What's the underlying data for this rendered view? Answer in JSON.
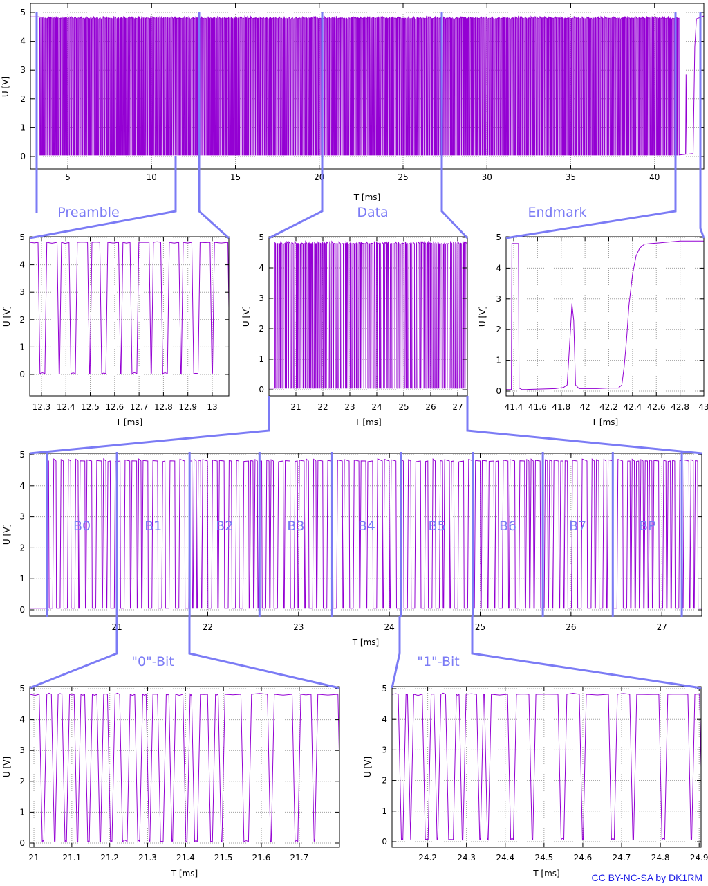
{
  "colors": {
    "signal": "#9400d3",
    "annotation": "#7b7bf5",
    "grid": "#a0a0a0",
    "frame": "#000000",
    "credit": "#1a1ae6"
  },
  "credit": "CC BY-NC-SA by DK1RM",
  "annotations": {
    "preamble": "Preamble",
    "data": "Data",
    "endmark": "Endmark",
    "zero_bit": "\"0\"-Bit",
    "one_bit": "\"1\"-Bit"
  },
  "chart_data": [
    {
      "id": "overview",
      "type": "line",
      "title": "",
      "xlabel": "T [ms]",
      "ylabel": "U [V]",
      "xlim": [
        2.77,
        42.94
      ],
      "ylim": [
        -0.43,
        5.1
      ],
      "xticks": [
        5,
        10,
        15,
        20,
        25,
        30,
        35,
        40
      ],
      "xtick_labels": [
        "5",
        "10",
        "15",
        "20",
        "25",
        "30",
        "35",
        "40"
      ],
      "yticks": [
        0,
        1,
        2,
        3,
        4,
        5
      ],
      "ytick_labels": [
        "0",
        "1",
        "2",
        "3",
        "4",
        "5"
      ],
      "grid": true,
      "series": [
        {
          "name": "U",
          "description_segments": [
            {
              "t0": 2.8,
              "t1": 3.3,
              "kind": "high"
            },
            {
              "t0": 3.3,
              "t1": 12.3,
              "kind": "square",
              "period": 0.1
            },
            {
              "t0": 12.3,
              "t1": 20.2,
              "kind": "square",
              "period": 0.1
            },
            {
              "t0": 20.2,
              "t1": 41.45,
              "kind": "burst"
            },
            {
              "t0": 41.45,
              "t1": 41.85,
              "kind": "low"
            },
            {
              "t0": 41.85,
              "t1": 41.95,
              "kind": "pulse",
              "peak": 2.85
            },
            {
              "t0": 41.95,
              "t1": 42.32,
              "kind": "low"
            },
            {
              "t0": 42.32,
              "t1": 42.94,
              "kind": "rise",
              "final": 4.88
            }
          ]
        }
      ]
    },
    {
      "id": "preamble",
      "type": "line",
      "xlabel": "T [ms]",
      "ylabel": "U [V]",
      "xlim": [
        12.252,
        13.068
      ],
      "ylim": [
        -0.8,
        5.0
      ],
      "xticks": [
        12.3,
        12.4,
        12.5,
        12.6,
        12.7,
        12.8,
        12.9,
        13
      ],
      "xtick_labels": [
        "12.3",
        "12.4",
        "12.5",
        "12.6",
        "12.7",
        "12.8",
        "12.9",
        "13"
      ],
      "yticks": [
        0,
        1,
        2,
        3,
        4,
        5
      ],
      "ytick_labels": [
        "0",
        "1",
        "2",
        "3",
        "4",
        "5"
      ],
      "grid": true,
      "series": [
        {
          "name": "U",
          "edges_ms": [
            12.29,
            12.318,
            12.368,
            12.378,
            12.417,
            12.443,
            12.493,
            12.503,
            12.543,
            12.568,
            12.62,
            12.63,
            12.667,
            12.695,
            12.745,
            12.755,
            12.793,
            12.82,
            12.867,
            12.877,
            12.92,
            12.946,
            12.995,
            13.005,
            13.068
          ],
          "start_level": "high",
          "high": 4.82,
          "low": 0.03
        }
      ]
    },
    {
      "id": "data",
      "type": "line",
      "xlabel": "T [ms]",
      "ylabel": "U [V]",
      "xlim": [
        20.0,
        27.36
      ],
      "ylim": [
        -0.2,
        5.0
      ],
      "xticks": [
        21,
        22,
        23,
        24,
        25,
        26,
        27
      ],
      "xtick_labels": [
        "21",
        "22",
        "23",
        "24",
        "25",
        "26",
        "27"
      ],
      "yticks": [
        0,
        1,
        2,
        3,
        4,
        5
      ],
      "ytick_labels": [
        "0",
        "1",
        "2",
        "3",
        "4",
        "5"
      ],
      "grid": true
    },
    {
      "id": "endmark",
      "type": "line",
      "xlabel": "T [ms]",
      "ylabel": "U [V]",
      "xlim": [
        41.336,
        43.0
      ],
      "ylim": [
        -0.2,
        5.0
      ],
      "xticks": [
        41.4,
        41.6,
        41.8,
        42,
        42.2,
        42.4,
        42.6,
        42.8,
        43
      ],
      "xtick_labels": [
        "41.4",
        "41.6",
        "41.8",
        "42",
        "42.2",
        "42.4",
        "42.6",
        "42.8",
        "43"
      ],
      "yticks": [
        0,
        1,
        2,
        3,
        4,
        5
      ],
      "ytick_labels": [
        "0",
        "1",
        "2",
        "3",
        "4",
        "5"
      ],
      "grid": true,
      "series": [
        {
          "name": "U",
          "points": [
            [
              41.336,
              0.05
            ],
            [
              41.38,
              0.05
            ],
            [
              41.385,
              4.8
            ],
            [
              41.44,
              4.8
            ],
            [
              41.445,
              0.1
            ],
            [
              41.47,
              0.05
            ],
            [
              41.75,
              0.08
            ],
            [
              41.82,
              0.12
            ],
            [
              41.85,
              0.2
            ],
            [
              41.875,
              1.8
            ],
            [
              41.89,
              2.85
            ],
            [
              41.905,
              2.3
            ],
            [
              41.92,
              0.2
            ],
            [
              41.95,
              0.08
            ],
            [
              42.1,
              0.08
            ],
            [
              42.2,
              0.1
            ],
            [
              42.28,
              0.1
            ],
            [
              42.31,
              0.2
            ],
            [
              42.33,
              0.8
            ],
            [
              42.35,
              1.7
            ],
            [
              42.37,
              2.8
            ],
            [
              42.4,
              3.8
            ],
            [
              42.43,
              4.4
            ],
            [
              42.46,
              4.65
            ],
            [
              42.5,
              4.78
            ],
            [
              42.55,
              4.8
            ],
            [
              42.62,
              4.82
            ],
            [
              42.7,
              4.85
            ],
            [
              42.8,
              4.88
            ],
            [
              43.0,
              4.88
            ]
          ]
        }
      ]
    },
    {
      "id": "bytes",
      "type": "line",
      "xlabel": "T [ms]",
      "ylabel": "U [V]",
      "xlim": [
        20.04,
        27.44
      ],
      "ylim": [
        -0.2,
        5.0
      ],
      "xticks": [
        21,
        22,
        23,
        24,
        25,
        26,
        27
      ],
      "xtick_labels": [
        "21",
        "22",
        "23",
        "24",
        "25",
        "26",
        "27"
      ],
      "yticks": [
        0,
        1,
        2,
        3,
        4,
        5
      ],
      "ytick_labels": [
        "0",
        "1",
        "2",
        "3",
        "4",
        "5"
      ],
      "grid": true,
      "byte_labels": [
        "B0",
        "B1",
        "B2",
        "B3",
        "B4",
        "B5",
        "B6",
        "B7",
        "BP"
      ],
      "byte_boundaries_ms": [
        20.23,
        21.0,
        21.8,
        22.57,
        23.37,
        24.13,
        24.92,
        25.69,
        26.46,
        27.22
      ]
    },
    {
      "id": "zero_bit",
      "type": "line",
      "xlabel": "T [ms]",
      "ylabel": "U [V]",
      "xlim": [
        20.989,
        21.806
      ],
      "ylim": [
        -0.1,
        5.0
      ],
      "xticks": [
        21,
        21.1,
        21.2,
        21.3,
        21.4,
        21.5,
        21.6,
        21.7
      ],
      "xtick_labels": [
        "21",
        "21.1",
        "21.2",
        "21.3",
        "21.4",
        "21.5",
        "21.6",
        "21.7"
      ],
      "yticks": [
        0,
        1,
        2,
        3,
        4,
        5
      ],
      "ytick_labels": [
        "0",
        "1",
        "2",
        "3",
        "4",
        "5"
      ],
      "grid": true,
      "series": [
        {
          "name": "U",
          "edges_ms": [
            21.018,
            21.03,
            21.05,
            21.06,
            21.078,
            21.09,
            21.11,
            21.12,
            21.138,
            21.15,
            21.17,
            21.18,
            21.198,
            21.21,
            21.23,
            21.25,
            21.27,
            21.283,
            21.3,
            21.31,
            21.33,
            21.345,
            21.36,
            21.37,
            21.397,
            21.408,
            21.42,
            21.435,
            21.462,
            21.475,
            21.49,
            21.5,
            21.55,
            21.57,
            21.62,
            21.63,
            21.685,
            21.7,
            21.735,
            21.745,
            21.806
          ],
          "start_level": "high",
          "high": 4.82,
          "low": 0.05
        }
      ]
    },
    {
      "id": "one_bit",
      "type": "line",
      "xlabel": "T [ms]",
      "ylabel": "U [V]",
      "xlim": [
        24.108,
        24.905
      ],
      "ylim": [
        -0.1,
        5.0
      ],
      "xticks": [
        24.2,
        24.3,
        24.4,
        24.5,
        24.6,
        24.7,
        24.8,
        24.9
      ],
      "xtick_labels": [
        "24.2",
        "24.3",
        "24.4",
        "24.5",
        "24.6",
        "24.7",
        "24.8",
        "24.9"
      ],
      "yticks": [
        0,
        1,
        2,
        3,
        4,
        5
      ],
      "ytick_labels": [
        "0",
        "1",
        "2",
        "3",
        "4",
        "5"
      ],
      "grid": true,
      "series": [
        {
          "name": "U",
          "edges_ms": [
            24.128,
            24.14,
            24.152,
            24.16,
            24.19,
            24.205,
            24.22,
            24.23,
            24.25,
            24.27,
            24.285,
            24.295,
            24.33,
            24.34,
            24.35,
            24.36,
            24.41,
            24.425,
            24.465,
            24.475,
            24.54,
            24.555,
            24.595,
            24.605,
            24.67,
            24.685,
            24.725,
            24.735,
            24.8,
            24.815,
            24.875,
            24.885,
            24.905
          ],
          "start_level": "high",
          "high": 4.82,
          "low": 0.07
        }
      ]
    }
  ]
}
